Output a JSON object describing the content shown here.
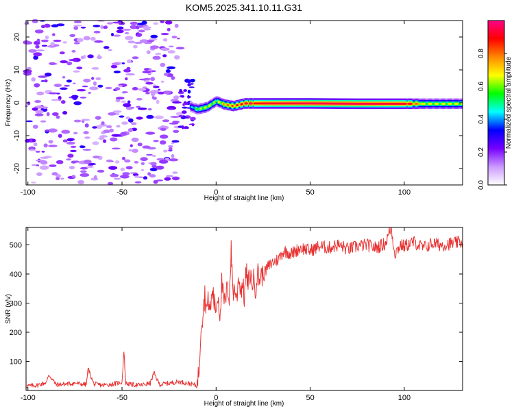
{
  "title": "KOM5.2025.341.10.11.G31",
  "chart_data": [
    {
      "type": "heatmap",
      "xlabel": "Height of straight line (km)",
      "ylabel": "Frequency (Hz)",
      "xlim": [
        -101,
        131
      ],
      "ylim": [
        -25,
        25
      ],
      "x_ticks": [
        -100,
        -50,
        0,
        50,
        100
      ],
      "y_ticks": [
        -20,
        -10,
        0,
        10,
        20
      ],
      "colorbar": {
        "label": "Normalized spectral amplitude",
        "range": [
          0,
          1
        ],
        "ticks": [
          "0.0",
          "0.2",
          "0.4",
          "0.6",
          "0.8"
        ],
        "colors": [
          "#ffffff",
          "#cc99ff",
          "#7700ff",
          "#0000ff",
          "#00ffff",
          "#00ff00",
          "#ffff00",
          "#ff8800",
          "#ff0000",
          "#ff0088"
        ]
      },
      "noise_region_x": [
        -101,
        -19
      ],
      "ridge": [
        {
          "x": -14,
          "y": -1.2,
          "amp": 0.35
        },
        {
          "x": -10,
          "y": -2.0,
          "amp": 0.55
        },
        {
          "x": -5,
          "y": -1.3,
          "amp": 0.6
        },
        {
          "x": 0,
          "y": 0.5,
          "amp": 0.55
        },
        {
          "x": 4,
          "y": -0.5,
          "amp": 0.7
        },
        {
          "x": 9,
          "y": -1.0,
          "amp": 0.75
        },
        {
          "x": 15,
          "y": -0.2,
          "amp": 0.85
        },
        {
          "x": 25,
          "y": -0.2,
          "amp": 0.92
        },
        {
          "x": 50,
          "y": -0.2,
          "amp": 0.95
        },
        {
          "x": 75,
          "y": -0.3,
          "amp": 0.95
        },
        {
          "x": 100,
          "y": -0.3,
          "amp": 0.92
        },
        {
          "x": 110,
          "y": -0.3,
          "amp": 0.6
        },
        {
          "x": 131,
          "y": -0.3,
          "amp": 0.6
        }
      ]
    },
    {
      "type": "line",
      "xlabel": "Height of straight line (km)",
      "ylabel": "SNR (v/v)",
      "xlim": [
        -101,
        131
      ],
      "ylim": [
        0,
        560
      ],
      "x_ticks": [
        -100,
        -50,
        0,
        50,
        100
      ],
      "y_ticks": [
        100,
        200,
        300,
        400,
        500
      ],
      "color": "#e83030",
      "x": [
        -101,
        -95,
        -90,
        -89,
        -85,
        -80,
        -75,
        -69,
        -68,
        -65,
        -60,
        -55,
        -50,
        -49,
        -48,
        -45,
        -40,
        -35,
        -33,
        -30,
        -25,
        -20,
        -15,
        -12,
        -10,
        -9,
        -8,
        -7,
        -6,
        -5,
        -4,
        -3,
        -2,
        -1,
        0,
        1,
        2,
        3,
        4,
        5,
        6,
        7,
        8,
        9,
        10,
        11,
        12,
        13,
        14,
        15,
        16,
        17,
        18,
        19,
        20,
        21,
        22,
        23,
        24,
        25,
        27,
        30,
        33,
        36,
        40,
        45,
        50,
        55,
        60,
        65,
        70,
        75,
        80,
        85,
        90,
        93,
        95,
        98,
        100,
        105,
        110,
        115,
        120,
        125,
        131
      ],
      "y": [
        15,
        18,
        28,
        55,
        20,
        22,
        25,
        20,
        75,
        22,
        18,
        22,
        28,
        135,
        25,
        20,
        18,
        25,
        60,
        20,
        25,
        30,
        25,
        20,
        15,
        80,
        230,
        260,
        330,
        280,
        310,
        270,
        350,
        300,
        280,
        330,
        260,
        370,
        310,
        300,
        360,
        320,
        480,
        340,
        350,
        310,
        400,
        340,
        370,
        320,
        410,
        360,
        400,
        370,
        380,
        350,
        410,
        380,
        400,
        390,
        420,
        440,
        450,
        480,
        470,
        490,
        480,
        495,
        490,
        500,
        485,
        495,
        500,
        490,
        505,
        560,
        470,
        500,
        495,
        510,
        490,
        505,
        500,
        505,
        510
      ]
    }
  ]
}
